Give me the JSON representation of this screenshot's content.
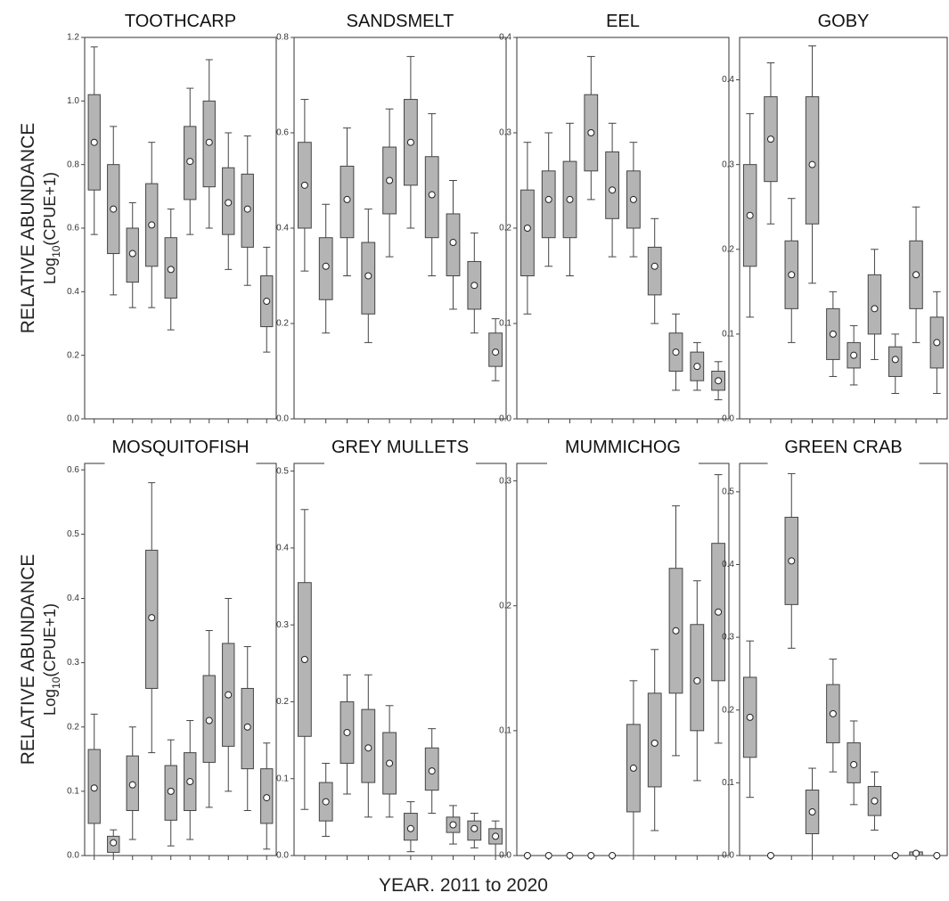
{
  "shared": {
    "x_label": "YEAR. 2011 to 2020",
    "y_label": "RELATIVE ABUNDANCE",
    "y_unit_base": "Log",
    "y_unit_sub": "10",
    "y_unit_rest": "(CPUE+1)"
  },
  "chart_data": [
    {
      "type": "box",
      "title": "TOOTHCARP",
      "color": "#b4b4b4",
      "categories": [
        null,
        null,
        null,
        null,
        null,
        null,
        null,
        null,
        null,
        null
      ],
      "ylim": [
        0,
        1.2
      ],
      "yticks": [
        {
          "value": 0,
          "label": "0.0"
        },
        0.2,
        0.4,
        0.6,
        0.8,
        {
          "value": 1,
          "label": "1.0"
        },
        1.2
      ],
      "whishi": [
        1.17,
        0.92,
        0.68,
        0.87,
        0.66,
        1.04,
        1.13,
        0.9,
        0.89,
        0.54
      ],
      "q3": [
        1.02,
        0.8,
        0.6,
        0.74,
        0.57,
        0.92,
        1.0,
        0.79,
        0.77,
        0.45
      ],
      "mean": [
        0.87,
        0.66,
        0.52,
        0.61,
        0.47,
        0.81,
        0.87,
        0.68,
        0.66,
        0.37
      ],
      "q1": [
        0.72,
        0.52,
        0.43,
        0.48,
        0.38,
        0.69,
        0.73,
        0.58,
        0.54,
        0.29
      ],
      "whislo": [
        0.58,
        0.39,
        0.35,
        0.35,
        0.28,
        0.58,
        0.6,
        0.47,
        0.42,
        0.21
      ]
    },
    {
      "type": "box",
      "title": "SANDSMELT",
      "color": "#b4b4b4",
      "categories": [
        null,
        null,
        null,
        null,
        null,
        null,
        null,
        null,
        null,
        null
      ],
      "ylim": [
        0,
        0.8
      ],
      "yticks": [
        {
          "value": 0,
          "label": "0.0"
        },
        0.2,
        0.4,
        0.6,
        0.8
      ],
      "whishi": [
        0.67,
        0.45,
        0.61,
        0.44,
        0.65,
        0.76,
        0.64,
        0.5,
        0.39,
        0.21
      ],
      "q3": [
        0.58,
        0.38,
        0.53,
        0.37,
        0.57,
        0.67,
        0.55,
        0.43,
        0.33,
        0.18
      ],
      "mean": [
        0.49,
        0.32,
        0.46,
        0.3,
        0.5,
        0.58,
        0.47,
        0.37,
        0.28,
        0.14
      ],
      "q1": [
        0.4,
        0.25,
        0.38,
        0.22,
        0.43,
        0.49,
        0.38,
        0.3,
        0.23,
        0.11
      ],
      "whislo": [
        0.31,
        0.18,
        0.3,
        0.16,
        0.34,
        0.4,
        0.3,
        0.23,
        0.18,
        0.08
      ]
    },
    {
      "type": "box",
      "title": "EEL",
      "color": "#b4b4b4",
      "categories": [
        null,
        null,
        null,
        null,
        null,
        null,
        null,
        null,
        null,
        null
      ],
      "ylim": [
        0,
        0.4
      ],
      "yticks": [
        {
          "value": 0,
          "label": "0.0"
        },
        0.1,
        0.2,
        0.3,
        0.4
      ],
      "whishi": [
        0.29,
        0.3,
        0.31,
        0.38,
        0.31,
        0.29,
        0.21,
        0.11,
        0.08,
        0.06
      ],
      "q3": [
        0.24,
        0.26,
        0.27,
        0.34,
        0.28,
        0.26,
        0.18,
        0.09,
        0.07,
        0.05
      ],
      "mean": [
        0.2,
        0.23,
        0.23,
        0.3,
        0.24,
        0.23,
        0.16,
        0.07,
        0.055,
        0.04
      ],
      "q1": [
        0.15,
        0.19,
        0.19,
        0.26,
        0.21,
        0.2,
        0.13,
        0.05,
        0.04,
        0.03
      ],
      "whislo": [
        0.11,
        0.16,
        0.15,
        0.23,
        0.17,
        0.17,
        0.1,
        0.03,
        0.03,
        0.02
      ]
    },
    {
      "type": "box",
      "title": "GOBY",
      "color": "#b4b4b4",
      "categories": [
        null,
        null,
        null,
        null,
        null,
        null,
        null,
        null,
        null,
        null
      ],
      "ylim": [
        0,
        0.45
      ],
      "yticks": [
        {
          "value": 0,
          "label": "0.0"
        },
        0.1,
        0.2,
        0.3,
        0.4
      ],
      "whishi": [
        0.36,
        0.42,
        0.26,
        0.44,
        0.15,
        0.11,
        0.2,
        0.1,
        0.25,
        0.15
      ],
      "q3": [
        0.3,
        0.38,
        0.21,
        0.38,
        0.13,
        0.09,
        0.17,
        0.085,
        0.21,
        0.12
      ],
      "mean": [
        0.24,
        0.33,
        0.17,
        0.3,
        0.1,
        0.075,
        0.13,
        0.07,
        0.17,
        0.09
      ],
      "q1": [
        0.18,
        0.28,
        0.13,
        0.23,
        0.07,
        0.06,
        0.1,
        0.05,
        0.13,
        0.06
      ],
      "whislo": [
        0.12,
        0.23,
        0.09,
        0.16,
        0.05,
        0.04,
        0.07,
        0.03,
        0.09,
        0.03
      ]
    },
    {
      "type": "box",
      "title": "MOSQUITOFISH",
      "color": "#b4b4b4",
      "categories": [
        null,
        null,
        null,
        null,
        null,
        null,
        null,
        null,
        null,
        null
      ],
      "ylim": [
        0,
        0.61
      ],
      "yticks": [
        {
          "value": 0,
          "label": "0.0"
        },
        0.1,
        0.2,
        0.3,
        0.4,
        0.5,
        0.6
      ],
      "whishi": [
        0.22,
        0.04,
        0.2,
        0.58,
        0.18,
        0.21,
        0.35,
        0.4,
        0.325,
        0.175
      ],
      "q3": [
        0.165,
        0.03,
        0.155,
        0.475,
        0.14,
        0.16,
        0.28,
        0.33,
        0.26,
        0.135
      ],
      "mean": [
        0.105,
        0.02,
        0.11,
        0.37,
        0.1,
        0.115,
        0.21,
        0.25,
        0.2,
        0.09
      ],
      "q1": [
        0.05,
        0.005,
        0.07,
        0.26,
        0.055,
        0.07,
        0.145,
        0.17,
        0.135,
        0.05
      ],
      "whislo": [
        0,
        0,
        0.025,
        0.16,
        0.015,
        0.025,
        0.075,
        0.1,
        0.07,
        0.01
      ]
    },
    {
      "type": "box",
      "title": "GREY MULLETS",
      "color": "#b4b4b4",
      "categories": [
        null,
        null,
        null,
        null,
        null,
        null,
        null,
        null,
        null,
        null
      ],
      "ylim": [
        0,
        0.51
      ],
      "yticks": [
        {
          "value": 0,
          "label": "0.0"
        },
        0.1,
        0.2,
        0.3,
        0.4,
        0.5
      ],
      "whishi": [
        0.45,
        0.12,
        0.235,
        0.235,
        0.195,
        0.07,
        0.165,
        0.065,
        0.055,
        0.045
      ],
      "q3": [
        0.355,
        0.095,
        0.2,
        0.19,
        0.16,
        0.055,
        0.14,
        0.05,
        0.045,
        0.035
      ],
      "mean": [
        0.255,
        0.07,
        0.16,
        0.14,
        0.12,
        0.035,
        0.11,
        0.04,
        0.035,
        0.025
      ],
      "q1": [
        0.155,
        0.045,
        0.12,
        0.095,
        0.08,
        0.02,
        0.085,
        0.03,
        0.02,
        0.015
      ],
      "whislo": [
        0.06,
        0.025,
        0.08,
        0.05,
        0.05,
        0.005,
        0.055,
        0.015,
        0.01,
        0
      ]
    },
    {
      "type": "box",
      "title": "MUMMICHOG",
      "color": "#b4b4b4",
      "categories": [
        null,
        null,
        null,
        null,
        null,
        null,
        null,
        null,
        null,
        null
      ],
      "ylim": [
        0,
        0.314
      ],
      "yticks": [
        {
          "value": 0,
          "label": "0.0"
        },
        0.1,
        0.2,
        0.3
      ],
      "whishi": [
        0,
        0,
        0,
        0,
        0,
        0.14,
        0.165,
        0.28,
        0.22,
        0.305
      ],
      "q3": [
        0,
        0,
        0,
        0,
        0,
        0.105,
        0.13,
        0.23,
        0.185,
        0.25
      ],
      "mean": [
        0,
        0,
        0,
        0,
        0,
        0.07,
        0.09,
        0.18,
        0.14,
        0.195
      ],
      "q1": [
        0,
        0,
        0,
        0,
        0,
        0.035,
        0.055,
        0.13,
        0.1,
        0.14
      ],
      "whislo": [
        0,
        0,
        0,
        0,
        0,
        0,
        0.02,
        0.08,
        0.06,
        0.09
      ]
    },
    {
      "type": "box",
      "title": "GREEN CRAB",
      "color": "#b4b4b4",
      "categories": [
        null,
        null,
        null,
        null,
        null,
        null,
        null,
        null,
        null,
        null
      ],
      "ylim": [
        0,
        0.539
      ],
      "yticks": [
        {
          "value": 0,
          "label": "0.0"
        },
        0.1,
        0.2,
        0.3,
        0.4,
        0.5
      ],
      "whishi": [
        0.295,
        0,
        0.525,
        0.12,
        0.27,
        0.185,
        0.115,
        0,
        0.005,
        0
      ],
      "q3": [
        0.245,
        0,
        0.465,
        0.09,
        0.235,
        0.155,
        0.095,
        0,
        0.005,
        0
      ],
      "mean": [
        0.19,
        0,
        0.405,
        0.06,
        0.195,
        0.125,
        0.075,
        0,
        0.003,
        0
      ],
      "q1": [
        0.135,
        0,
        0.345,
        0.03,
        0.155,
        0.1,
        0.055,
        0,
        0,
        0
      ],
      "whislo": [
        0.08,
        0,
        0.285,
        0,
        0.115,
        0.07,
        0.035,
        0,
        0,
        0
      ]
    }
  ]
}
